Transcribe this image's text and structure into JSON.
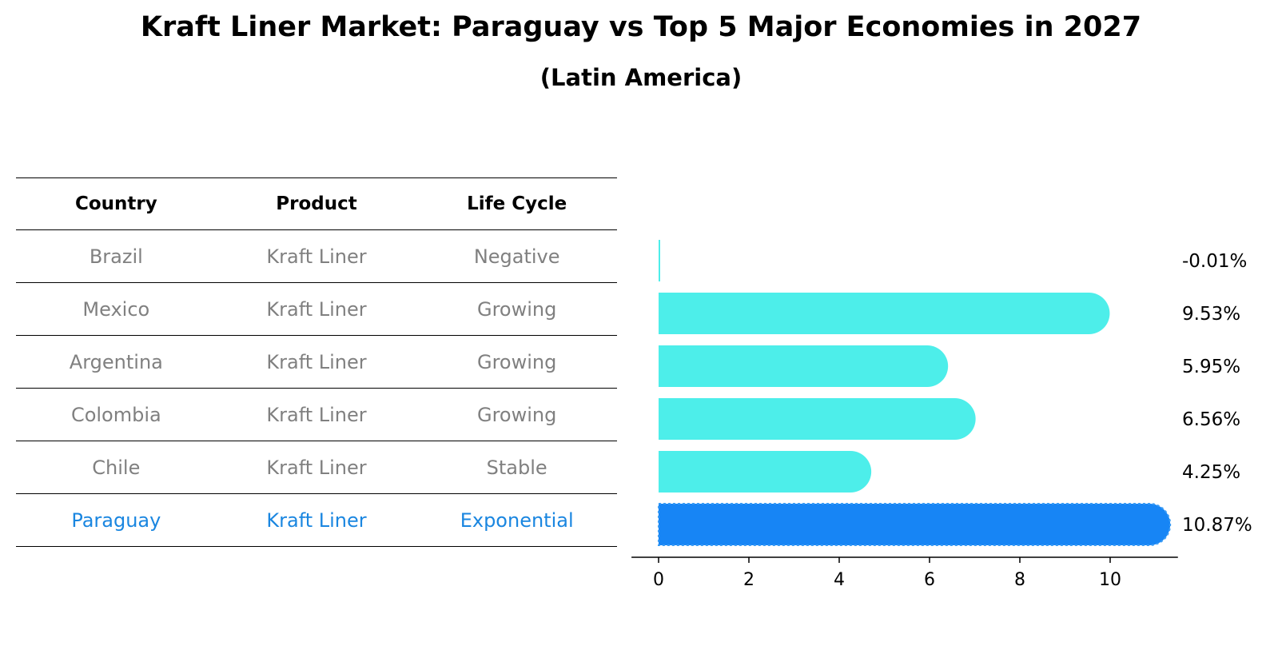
{
  "title": "Kraft Liner Market: Paraguay vs Top 5 Major Economies in 2027",
  "subtitle": "(Latin America)",
  "table": {
    "headers": [
      "Country",
      "Product",
      "Life Cycle"
    ],
    "rows": [
      {
        "country": "Brazil",
        "product": "Kraft Liner",
        "life_cycle": "Negative"
      },
      {
        "country": "Mexico",
        "product": "Kraft Liner",
        "life_cycle": "Growing"
      },
      {
        "country": "Argentina",
        "product": "Kraft Liner",
        "life_cycle": "Growing"
      },
      {
        "country": "Colombia",
        "product": "Kraft Liner",
        "life_cycle": "Growing"
      },
      {
        "country": "Chile",
        "product": "Kraft Liner",
        "life_cycle": "Stable"
      },
      {
        "country": "Paraguay",
        "product": "Kraft Liner",
        "life_cycle": "Exponential"
      }
    ]
  },
  "chart_data": {
    "type": "bar",
    "orientation": "horizontal",
    "categories": [
      "Brazil",
      "Mexico",
      "Argentina",
      "Colombia",
      "Chile",
      "Paraguay"
    ],
    "values": [
      -0.01,
      9.53,
      5.95,
      6.56,
      4.25,
      10.87
    ],
    "value_labels": [
      "-0.01%",
      "9.53%",
      "5.95%",
      "6.56%",
      "4.25%",
      "10.87%"
    ],
    "highlight": "Paraguay",
    "xticks": [
      "0",
      "2",
      "4",
      "6",
      "8",
      "10"
    ],
    "xlim": [
      -0.6,
      11.5
    ],
    "grid": false,
    "colors": {
      "bar": "#4deeea",
      "highlight": "#1785f5",
      "highlight_text": "#1a86e0",
      "muted_text": "#808080"
    }
  }
}
